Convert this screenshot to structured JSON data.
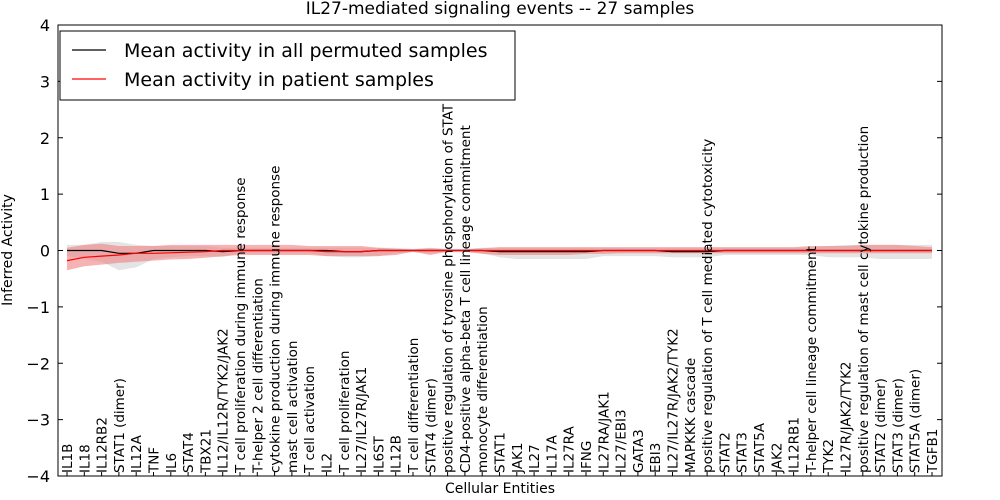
{
  "chart_data": {
    "type": "line",
    "title": "IL27-mediated signaling events -- 27 samples",
    "xlabel": "Cellular Entities",
    "ylabel": "Inferred Activity",
    "ylim": [
      -4,
      4
    ],
    "yticks": [
      -4,
      -3,
      -2,
      -1,
      0,
      1,
      2,
      3,
      4
    ],
    "ytick_labels": [
      "−4",
      "−3",
      "−2",
      "−1",
      "0",
      "1",
      "2",
      "3",
      "4"
    ],
    "grid": false,
    "legend_position": "top-left",
    "categories": [
      "IL1B",
      "IL18",
      "IL12RB2",
      "STAT1 (dimer)",
      "IL12A",
      "TNF",
      "IL6",
      "STAT4",
      "TBX21",
      "IL12/IL12R/TYK2/JAK2",
      "T cell proliferation during immune response",
      "T-helper 2 cell differentiation",
      "cytokine production during immune response",
      "mast cell activation",
      "T cell activation",
      "IL2",
      "T cell proliferation",
      "IL27/IL27R/JAK1",
      "IL6ST",
      "IL12B",
      "T cell differentiation",
      "STAT4 (dimer)",
      "positive regulation of tyrosine phosphorylation of STAT protein",
      "CD4-positive alpha-beta T cell lineage commitment",
      "monocyte differentiation",
      "STAT1",
      "JAK1",
      "IL27",
      "IL17A",
      "IL27RA",
      "IFNG",
      "IL27RA/JAK1",
      "IL27/EBI3",
      "GATA3",
      "EBI3",
      "IL27/IL27R/JAK2/TYK2",
      "MAPKKK cascade",
      "positive regulation of T cell mediated cytotoxicity",
      "STAT2",
      "STAT3",
      "STAT5A",
      "JAK2",
      "IL12RB1",
      "T-helper cell lineage commitment",
      "TYK2",
      "IL27R/JAK2/TYK2",
      "positive regulation of mast cell cytokine production",
      "STAT2 (dimer)",
      "STAT3 (dimer)",
      "STAT5A (dimer)",
      "TGFB1"
    ],
    "series": [
      {
        "name": "Mean activity in all permuted samples",
        "color": "#000000",
        "values": [
          0,
          0,
          0,
          -0.05,
          -0.05,
          0,
          0,
          0,
          0,
          -0.02,
          0,
          0,
          0,
          0,
          0,
          0,
          -0.02,
          -0.02,
          0,
          0,
          0,
          0,
          0,
          0,
          0,
          -0.02,
          -0.02,
          -0.02,
          -0.02,
          -0.02,
          -0.02,
          0,
          0,
          0,
          0,
          -0.02,
          -0.02,
          -0.02,
          0,
          0,
          0,
          0,
          0,
          0,
          0,
          0,
          0,
          0,
          0,
          0,
          0
        ],
        "lower": [
          -0.1,
          -0.15,
          -0.2,
          -0.35,
          -0.3,
          -0.15,
          -0.12,
          -0.1,
          -0.1,
          -0.12,
          -0.05,
          -0.05,
          -0.05,
          -0.05,
          -0.05,
          -0.1,
          -0.12,
          -0.12,
          -0.1,
          -0.05,
          -0.03,
          -0.05,
          -0.03,
          -0.03,
          -0.05,
          -0.12,
          -0.15,
          -0.15,
          -0.15,
          -0.15,
          -0.15,
          -0.1,
          -0.1,
          -0.1,
          -0.1,
          -0.12,
          -0.12,
          -0.12,
          -0.08,
          -0.08,
          -0.08,
          -0.08,
          -0.08,
          -0.08,
          -0.12,
          -0.12,
          -0.12,
          -0.15,
          -0.15,
          -0.15,
          -0.15
        ],
        "upper": [
          0.1,
          0.1,
          0.15,
          0.15,
          0.1,
          0.08,
          0.08,
          0.08,
          0.08,
          0.05,
          0.05,
          0.05,
          0.05,
          0.05,
          0.05,
          0.05,
          0.05,
          0.05,
          0.05,
          0.05,
          0.03,
          0.05,
          0.03,
          0.03,
          0.05,
          0.05,
          0.05,
          0.05,
          0.05,
          0.05,
          0.05,
          0.05,
          0.05,
          0.05,
          0.05,
          0.05,
          0.05,
          0.05,
          0.05,
          0.05,
          0.05,
          0.05,
          0.05,
          0.05,
          0.08,
          0.1,
          0.1,
          0.1,
          0.1,
          0.1,
          0.1
        ]
      },
      {
        "name": "Mean activity in patient samples",
        "color": "#ff0000",
        "fill": "#f08080",
        "values": [
          -0.18,
          -0.12,
          -0.1,
          -0.08,
          -0.05,
          -0.05,
          -0.04,
          -0.03,
          -0.02,
          0,
          0,
          0,
          0,
          0,
          0,
          -0.02,
          -0.02,
          -0.02,
          0,
          0,
          0,
          0,
          0,
          0,
          0,
          0,
          0,
          0,
          0,
          0,
          0,
          0,
          0,
          0,
          0,
          0,
          0,
          0,
          0,
          0,
          0,
          0,
          0,
          0,
          0,
          0,
          0,
          0,
          0,
          0,
          0
        ],
        "lower": [
          -0.35,
          -0.28,
          -0.25,
          -0.22,
          -0.2,
          -0.18,
          -0.16,
          -0.15,
          -0.13,
          -0.1,
          -0.08,
          -0.08,
          -0.08,
          -0.08,
          -0.08,
          -0.1,
          -0.1,
          -0.1,
          -0.1,
          -0.08,
          -0.02,
          -0.08,
          -0.02,
          -0.02,
          -0.06,
          -0.08,
          -0.08,
          -0.08,
          -0.08,
          -0.08,
          -0.06,
          -0.06,
          -0.05,
          -0.05,
          -0.05,
          -0.05,
          -0.05,
          -0.05,
          -0.05,
          -0.05,
          -0.05,
          -0.05,
          -0.05,
          -0.05,
          -0.05,
          -0.05,
          -0.05,
          -0.05,
          -0.05,
          -0.05,
          -0.05
        ],
        "upper": [
          0.05,
          0.1,
          0.12,
          0.08,
          0.08,
          0.08,
          0.1,
          0.1,
          0.1,
          0.1,
          0.1,
          0.1,
          0.1,
          0.1,
          0.08,
          0.08,
          0.08,
          0.08,
          0.05,
          0.03,
          0.02,
          0.04,
          0.02,
          0.02,
          0.04,
          0.06,
          0.06,
          0.06,
          0.06,
          0.06,
          0.06,
          0.06,
          0.06,
          0.06,
          0.06,
          0.06,
          0.06,
          0.06,
          0.06,
          0.06,
          0.06,
          0.06,
          0.06,
          0.08,
          0.08,
          0.08,
          0.1,
          0.1,
          0.1,
          0.08,
          0.06
        ]
      }
    ]
  }
}
